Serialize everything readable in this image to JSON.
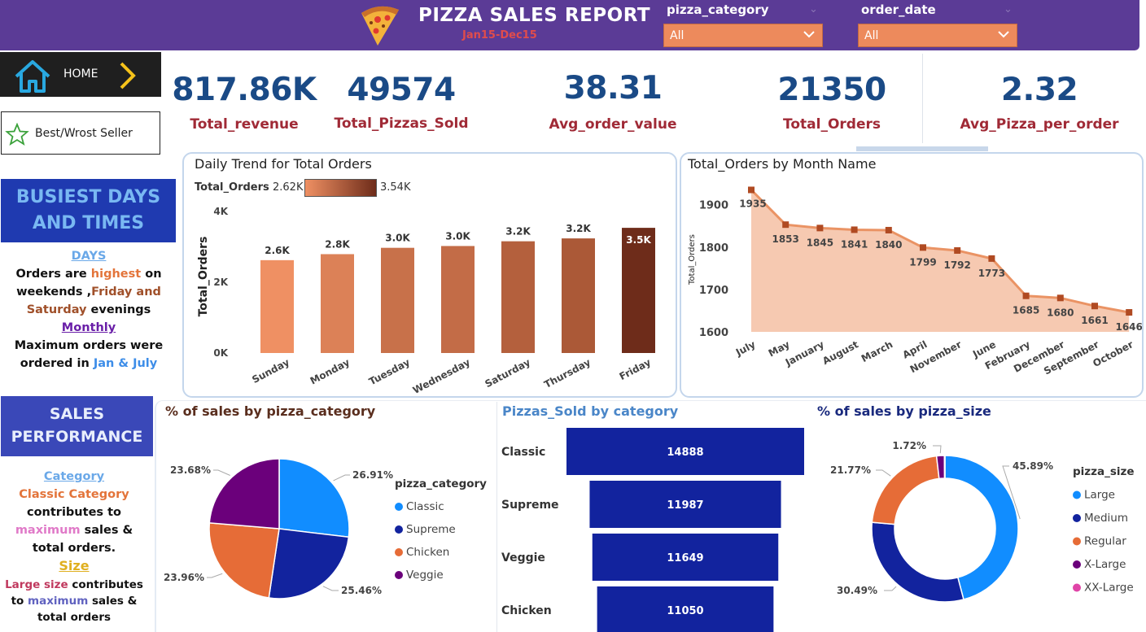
{
  "header": {
    "title": "PIZZA SALES REPORT",
    "subtitle": "Jan15-Dec15",
    "filters": [
      {
        "label": "pizza_category",
        "value": "All"
      },
      {
        "label": "order_date",
        "value": "All"
      }
    ]
  },
  "nav": {
    "home": "HOME",
    "best_worst": "Best/Wrost Seller"
  },
  "kpis": [
    {
      "value": "817.86K",
      "label": "Total_revenue"
    },
    {
      "value": "49574",
      "label": "Total_Pizzas_Sold"
    },
    {
      "value": "38.31",
      "label": "Avg_order_value"
    },
    {
      "value": "21350",
      "label": "Total_Orders"
    },
    {
      "value": "2.32",
      "label": "Avg_Pizza_per_order"
    }
  ],
  "busiest": {
    "heading": "BUSIEST DAYS AND TIMES",
    "days_label": "DAYS",
    "l1a": "Orders are ",
    "l1b": "highest",
    "l1c": " on",
    "l2a": "weekends ,",
    "l2b": "Friday and",
    "l3a": "Saturday",
    "l3b": " evenings",
    "monthly_label": "Monthly",
    "l4": "Maximum orders were",
    "l5a": "ordered in ",
    "l5b": "Jan & July"
  },
  "sales_perf": {
    "heading": "SALES PERFORMANCE",
    "category_label": "Category",
    "c1": "Classic Category",
    "c2": "contributes to",
    "c3a": "maximum",
    "c3b": " sales &",
    "c4": "total orders.",
    "size_label": "Size",
    "s1a": "Large size",
    "s1b": " contributes",
    "s2a": "to ",
    "s2b": "maximum",
    "s2c": " sales &",
    "s3": "total orders"
  },
  "chart_data": [
    {
      "type": "bar",
      "title": "Daily Trend for Total Orders",
      "legend_title": "Total_Orders",
      "legend_min": "2.62K",
      "legend_max": "3.54K",
      "ylabel": "Total_Orders",
      "ylim": [
        0,
        4000
      ],
      "yticks": [
        "0K",
        "2K",
        "4K"
      ],
      "categories": [
        "Sunday",
        "Monday",
        "Tuesday",
        "Wednesday",
        "Saturday",
        "Thursday",
        "Friday"
      ],
      "values": [
        2624,
        2794,
        2973,
        3024,
        3158,
        3239,
        3538
      ],
      "labels": [
        "2.6K",
        "2.8K",
        "3.0K",
        "3.0K",
        "3.2K",
        "3.2K",
        "3.5K"
      ]
    },
    {
      "type": "area",
      "title": "Total_Orders by Month Name",
      "ylabel": "Total_Orders",
      "ylim": [
        1600,
        1935
      ],
      "yticks": [
        "1600",
        "1700",
        "1800",
        "1900"
      ],
      "categories": [
        "July",
        "May",
        "January",
        "August",
        "March",
        "April",
        "November",
        "June",
        "February",
        "December",
        "September",
        "October"
      ],
      "values": [
        1935,
        1853,
        1845,
        1841,
        1840,
        1799,
        1792,
        1773,
        1685,
        1680,
        1661,
        1646
      ]
    },
    {
      "type": "pie",
      "title": "% of sales by pizza_category",
      "legend_title": "pizza_category",
      "categories": [
        "Classic",
        "Supreme",
        "Chicken",
        "Veggie"
      ],
      "values": [
        26.91,
        25.46,
        23.96,
        23.68
      ],
      "labels": [
        "26.91%",
        "25.46%",
        "23.96%",
        "23.68%"
      ],
      "colors": [
        "#118dff",
        "#12239e",
        "#e66c37",
        "#6b007b"
      ]
    },
    {
      "type": "bar",
      "title": "Pizzas_Sold by category",
      "categories": [
        "Classic",
        "Supreme",
        "Veggie",
        "Chicken"
      ],
      "values": [
        14888,
        11987,
        11649,
        11050
      ],
      "labels": [
        "14888",
        "11987",
        "11649",
        "11050"
      ]
    },
    {
      "type": "pie",
      "title": "% of sales by pizza_size",
      "legend_title": "pizza_size",
      "categories": [
        "Large",
        "Medium",
        "Regular",
        "X-Large",
        "XX-Large"
      ],
      "values": [
        45.89,
        30.49,
        21.77,
        1.72,
        0.12
      ],
      "labels": [
        "45.89%",
        "30.49%",
        "21.77%",
        "1.72%",
        ""
      ],
      "colors": [
        "#118dff",
        "#12239e",
        "#e66c37",
        "#6b007b",
        "#e044a7"
      ]
    }
  ]
}
